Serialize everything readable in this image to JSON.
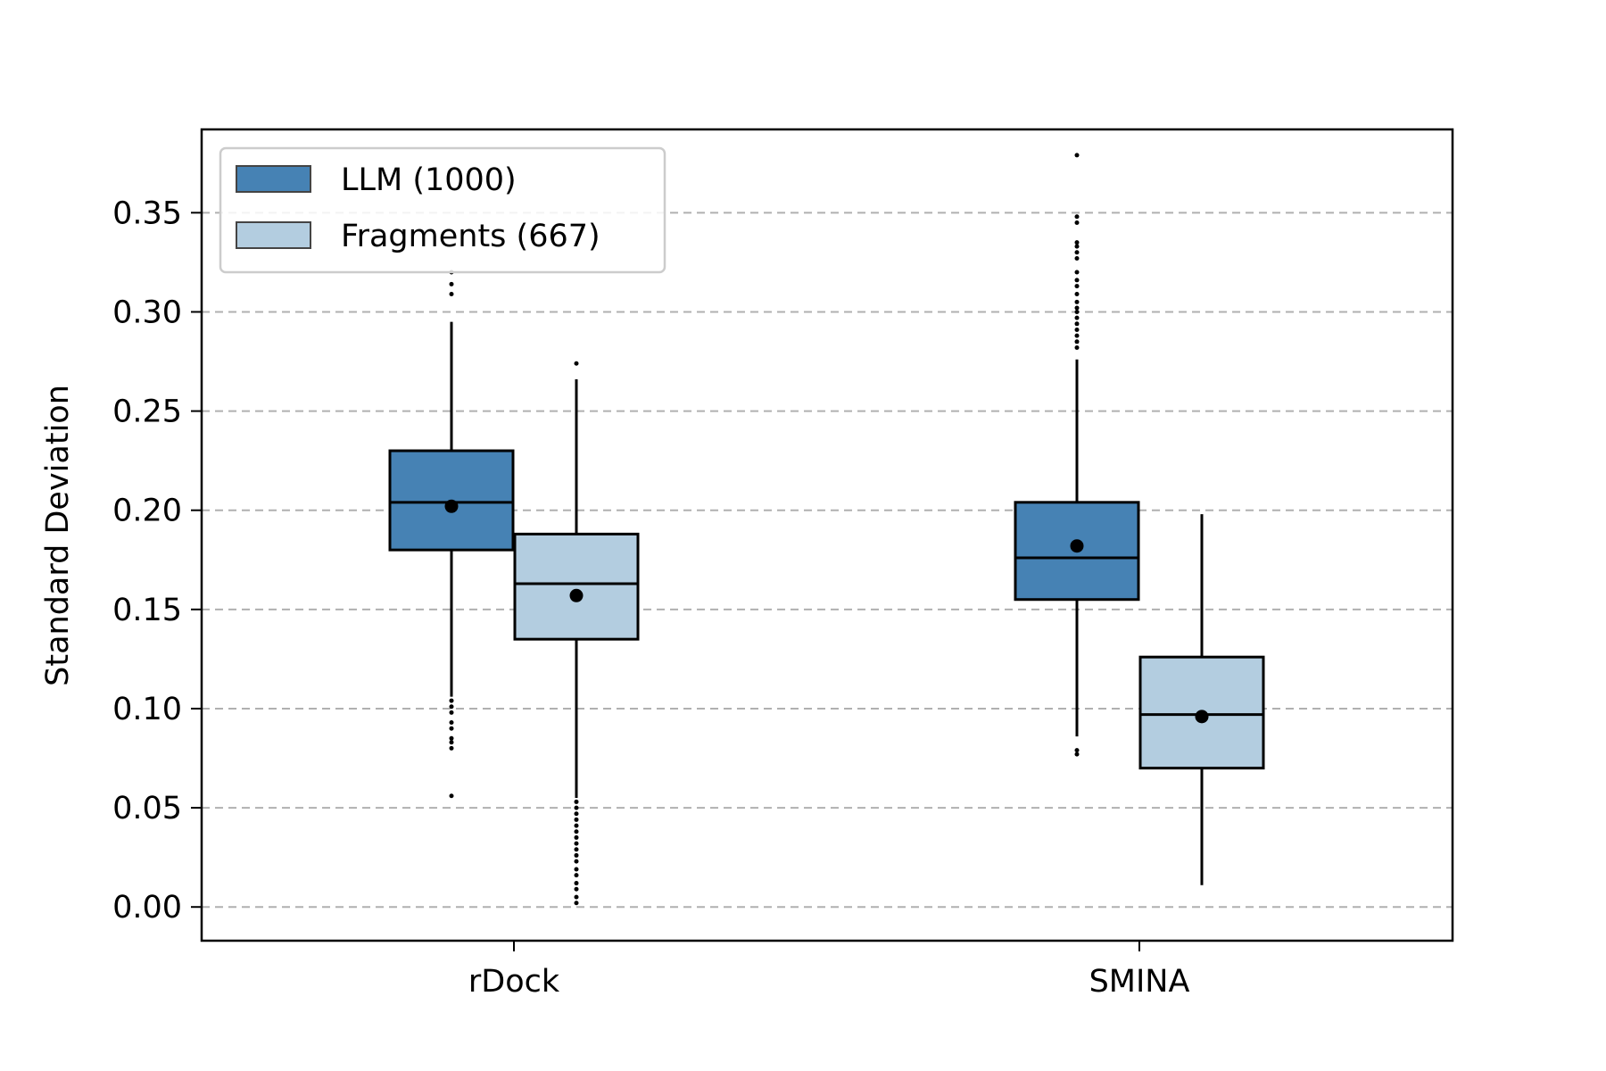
{
  "chart_data": {
    "type": "box",
    "title": "",
    "xlabel": "",
    "ylabel": "Standard Deviation",
    "ylim": [
      -0.017,
      0.392
    ],
    "yticks": [
      0.0,
      0.05,
      0.1,
      0.15,
      0.2,
      0.25,
      0.3,
      0.35
    ],
    "ytick_labels": [
      "0.00",
      "0.05",
      "0.10",
      "0.15",
      "0.20",
      "0.25",
      "0.30",
      "0.35"
    ],
    "grid": "y-dashed",
    "categories": [
      "rDock",
      "SMINA"
    ],
    "legend": {
      "placement": "top-left"
    },
    "colors": {
      "LLM (1000)": "#4682b4",
      "Fragments (667)": "#b3cde0",
      "grid": "#b0b0b0"
    },
    "series": [
      {
        "name": "LLM (1000)",
        "boxes": [
          {
            "category": "rDock",
            "whisker_low": 0.106,
            "q1": 0.18,
            "median": 0.204,
            "q3": 0.23,
            "whisker_high": 0.295,
            "mean": 0.202,
            "outliers": [
              0.32,
              0.314,
              0.309,
              0.104,
              0.101,
              0.098,
              0.093,
              0.09,
              0.085,
              0.083,
              0.08,
              0.056
            ]
          },
          {
            "category": "SMINA",
            "whisker_low": 0.086,
            "q1": 0.155,
            "median": 0.176,
            "q3": 0.204,
            "whisker_high": 0.276,
            "mean": 0.182,
            "outliers": [
              0.379,
              0.348,
              0.345,
              0.335,
              0.333,
              0.33,
              0.327,
              0.32,
              0.316,
              0.313,
              0.309,
              0.305,
              0.302,
              0.3,
              0.297,
              0.294,
              0.291,
              0.288,
              0.285,
              0.282,
              0.079,
              0.077
            ]
          }
        ]
      },
      {
        "name": "Fragments (667)",
        "boxes": [
          {
            "category": "rDock",
            "whisker_low": 0.055,
            "q1": 0.135,
            "median": 0.163,
            "q3": 0.188,
            "whisker_high": 0.266,
            "mean": 0.157,
            "outliers": [
              0.274,
              0.053,
              0.05,
              0.047,
              0.044,
              0.041,
              0.038,
              0.035,
              0.032,
              0.029,
              0.026,
              0.023,
              0.019,
              0.016,
              0.012,
              0.009,
              0.005,
              0.002
            ]
          },
          {
            "category": "SMINA",
            "whisker_low": 0.011,
            "q1": 0.07,
            "median": 0.097,
            "q3": 0.126,
            "whisker_high": 0.198,
            "mean": 0.096,
            "outliers": []
          }
        ]
      }
    ]
  }
}
